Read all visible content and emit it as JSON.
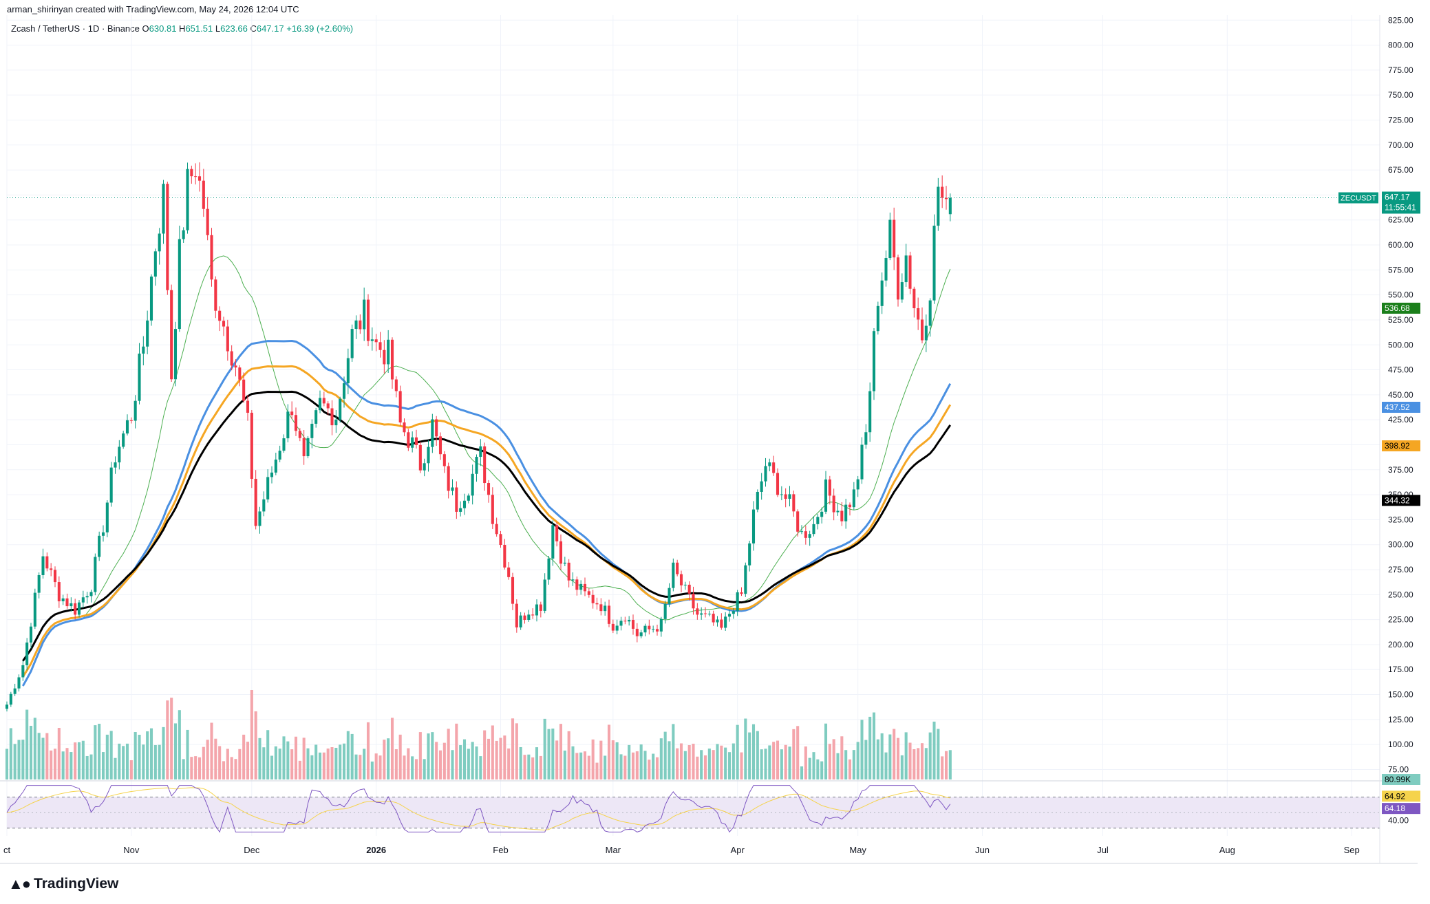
{
  "header": {
    "credit": "arman_shirinyan created with TradingView.com, May 24, 2026 12:04 UTC",
    "symbol": "Zcash / TetherUS · 1D · Binance",
    "o_label": "O",
    "o": "630.81",
    "h_label": "H",
    "h": "651.51",
    "l_label": "L",
    "l": "623.66",
    "c_label": "C",
    "c": "647.17",
    "change": "+16.39 (+2.60%)"
  },
  "branding": {
    "logo_text": "TradingView",
    "logo_icon": "tradingview-logo-icon"
  },
  "colors": {
    "up": "#089981",
    "down": "#f23645",
    "vol_up": "#7fccc0",
    "vol_down": "#f4a5ab",
    "ma20": "#4caf50",
    "ma50": "#4a90e2",
    "ma100": "#f5a623",
    "ma200": "#000000",
    "rsi": "#7e57c2",
    "rsi_ma": "#f5d34c"
  },
  "chart_data": {
    "type": "candlestick",
    "symbol": "ZECUSDT",
    "interval": "1D",
    "y_axis": {
      "ticks": [
        "75.00",
        "100.00",
        "125.00",
        "150.00",
        "175.00",
        "200.00",
        "225.00",
        "250.00",
        "275.00",
        "300.00",
        "325.00",
        "350.00",
        "375.00",
        "400.00",
        "425.00",
        "450.00",
        "475.00",
        "500.00",
        "525.00",
        "550.00",
        "575.00",
        "600.00",
        "625.00",
        "650.00",
        "675.00",
        "700.00",
        "725.00",
        "750.00",
        "775.00",
        "800.00",
        "825.00"
      ],
      "range": [
        65,
        830
      ]
    },
    "x_axis": {
      "ticks": [
        {
          "label": "ct",
          "date": "2025-10-01"
        },
        {
          "label": "Nov",
          "date": "2025-11-01"
        },
        {
          "label": "Dec",
          "date": "2025-12-01"
        },
        {
          "label": "2026",
          "date": "2026-01-01"
        },
        {
          "label": "Feb",
          "date": "2026-02-01"
        },
        {
          "label": "Mar",
          "date": "2026-03-01"
        },
        {
          "label": "Apr",
          "date": "2026-04-01"
        },
        {
          "label": "May",
          "date": "2026-05-01"
        },
        {
          "label": "Jun",
          "date": "2026-06-01"
        },
        {
          "label": "Jul",
          "date": "2026-07-01"
        },
        {
          "label": "Aug",
          "date": "2026-08-01"
        },
        {
          "label": "Sep",
          "date": "2026-09-01"
        }
      ],
      "range": [
        "2025-10-01",
        "2026-09-08"
      ]
    },
    "close_path": [
      [
        "2025-10-01",
        140
      ],
      [
        "2025-10-05",
        180
      ],
      [
        "2025-10-10",
        290
      ],
      [
        "2025-10-14",
        250
      ],
      [
        "2025-10-18",
        235
      ],
      [
        "2025-10-22",
        260
      ],
      [
        "2025-10-25",
        320
      ],
      [
        "2025-10-28",
        390
      ],
      [
        "2025-11-01",
        430
      ],
      [
        "2025-11-04",
        500
      ],
      [
        "2025-11-07",
        600
      ],
      [
        "2025-11-09",
        650
      ],
      [
        "2025-11-11",
        470
      ],
      [
        "2025-11-13",
        590
      ],
      [
        "2025-11-15",
        660
      ],
      [
        "2025-11-17",
        680
      ],
      [
        "2025-11-19",
        640
      ],
      [
        "2025-11-21",
        560
      ],
      [
        "2025-11-24",
        520
      ],
      [
        "2025-11-27",
        480
      ],
      [
        "2025-11-30",
        420
      ],
      [
        "2025-12-02",
        320
      ],
      [
        "2025-12-05",
        360
      ],
      [
        "2025-12-08",
        400
      ],
      [
        "2025-12-11",
        440
      ],
      [
        "2025-12-14",
        380
      ],
      [
        "2025-12-18",
        440
      ],
      [
        "2025-12-22",
        430
      ],
      [
        "2025-12-26",
        510
      ],
      [
        "2025-12-29",
        530
      ],
      [
        "2026-01-01",
        500
      ],
      [
        "2026-01-04",
        490
      ],
      [
        "2026-01-07",
        420
      ],
      [
        "2026-01-10",
        400
      ],
      [
        "2026-01-12",
        380
      ],
      [
        "2026-01-15",
        420
      ],
      [
        "2026-01-18",
        370
      ],
      [
        "2026-01-21",
        340
      ],
      [
        "2026-01-24",
        360
      ],
      [
        "2026-01-27",
        390
      ],
      [
        "2026-01-30",
        330
      ],
      [
        "2026-02-01",
        300
      ],
      [
        "2026-02-03",
        270
      ],
      [
        "2026-02-05",
        220
      ],
      [
        "2026-02-08",
        235
      ],
      [
        "2026-02-11",
        240
      ],
      [
        "2026-02-14",
        320
      ],
      [
        "2026-02-16",
        290
      ],
      [
        "2026-02-18",
        265
      ],
      [
        "2026-02-22",
        250
      ],
      [
        "2026-02-26",
        240
      ],
      [
        "2026-03-01",
        220
      ],
      [
        "2026-03-04",
        230
      ],
      [
        "2026-03-07",
        210
      ],
      [
        "2026-03-10",
        215
      ],
      [
        "2026-03-13",
        220
      ],
      [
        "2026-03-16",
        275
      ],
      [
        "2026-03-18",
        260
      ],
      [
        "2026-03-22",
        230
      ],
      [
        "2026-03-25",
        225
      ],
      [
        "2026-03-28",
        215
      ],
      [
        "2026-03-31",
        240
      ],
      [
        "2026-04-02",
        250
      ],
      [
        "2026-04-05",
        330
      ],
      [
        "2026-04-08",
        380
      ],
      [
        "2026-04-11",
        360
      ],
      [
        "2026-04-14",
        340
      ],
      [
        "2026-04-17",
        310
      ],
      [
        "2026-04-20",
        320
      ],
      [
        "2026-04-23",
        355
      ],
      [
        "2026-04-27",
        330
      ],
      [
        "2026-04-30",
        350
      ],
      [
        "2026-05-03",
        410
      ],
      [
        "2026-05-06",
        550
      ],
      [
        "2026-05-09",
        610
      ],
      [
        "2026-05-11",
        560
      ],
      [
        "2026-05-13",
        590
      ],
      [
        "2026-05-15",
        540
      ],
      [
        "2026-05-17",
        510
      ],
      [
        "2026-05-19",
        560
      ],
      [
        "2026-05-21",
        660
      ],
      [
        "2026-05-23",
        630
      ],
      [
        "2026-05-24",
        647.17
      ]
    ],
    "last_price": "647.17",
    "last_label": "ZECUSDT",
    "countdown": "11:55:41",
    "moving_averages": [
      {
        "key": "ma20",
        "label": "536.68",
        "value": 536.68,
        "lag": 20
      },
      {
        "key": "ma50",
        "label": "437.52",
        "value": 437.52,
        "lag": 50
      },
      {
        "key": "ma100",
        "label": "398.92",
        "value": 398.92,
        "lag": 100
      },
      {
        "key": "ma200",
        "label": "344.32",
        "value": 344.32,
        "lag": 200
      }
    ],
    "volume_label": "80.99K",
    "rsi": {
      "ticks": [
        "40.00"
      ],
      "level_70": 70,
      "level_30": 30,
      "value_label": "64.18",
      "ma_label": "64.92",
      "value": 64.18,
      "ma": 64.92
    }
  }
}
